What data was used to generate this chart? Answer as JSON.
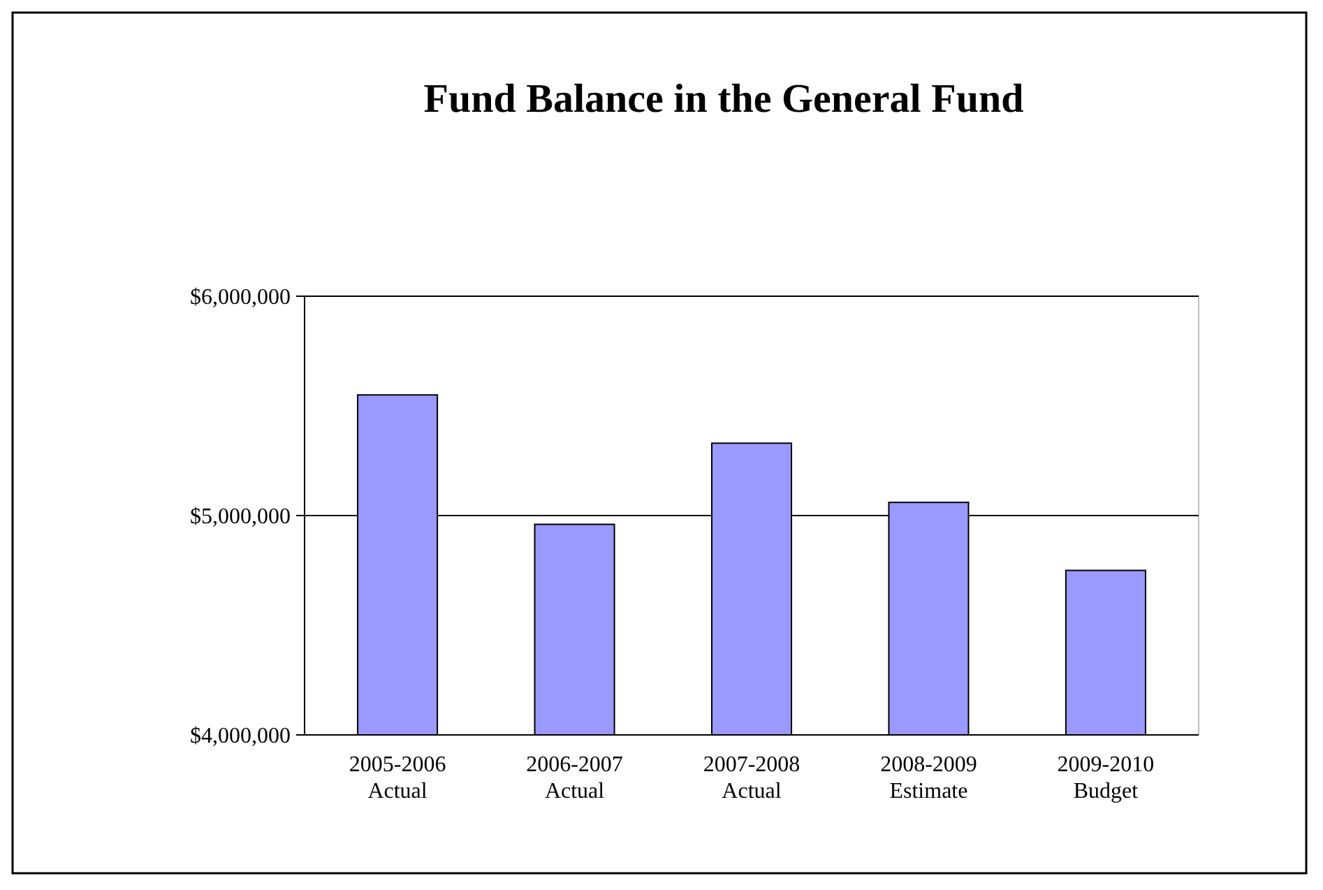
{
  "chart_data": {
    "type": "bar",
    "title": "Fund Balance in the General Fund",
    "categories": [
      "2005-2006\nActual",
      "2006-2007\nActual",
      "2007-2008\nActual",
      "2008-2009\nEstimate",
      "2009-2010\nBudget"
    ],
    "values": [
      5550000,
      4960000,
      5330000,
      5060000,
      4750000
    ],
    "color": "#9999ff",
    "ylim": [
      4000000,
      6000000
    ],
    "yticks": [
      {
        "value": 4000000,
        "label": "$4,000,000"
      },
      {
        "value": 5000000,
        "label": "$5,000,000"
      },
      {
        "value": 6000000,
        "label": "$6,000,000"
      }
    ],
    "grid": "y"
  }
}
